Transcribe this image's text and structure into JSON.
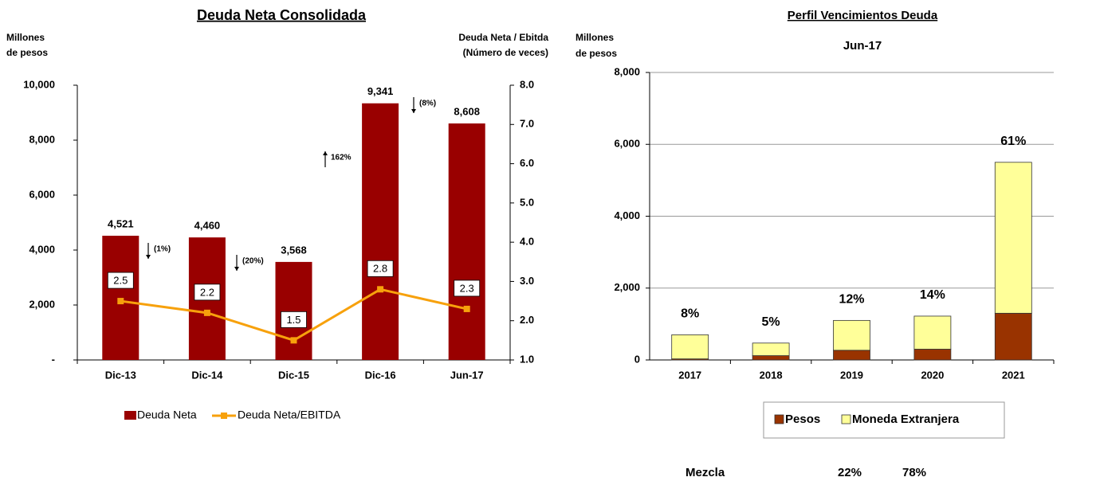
{
  "chart_data": [
    {
      "type": "bar_line",
      "title": "Deuda Neta Consolidada",
      "y_label": [
        "Millones",
        "de pesos"
      ],
      "y2_label": [
        "Deuda Neta / Ebitda",
        "(Número de veces)"
      ],
      "categories": [
        "Dic-13",
        "Dic-14",
        "Dic-15",
        "Dic-16",
        "Jun-17"
      ],
      "series": [
        {
          "name": "Deuda Neta",
          "color": "#990000",
          "values": [
            4521,
            4460,
            3568,
            9341,
            8608
          ],
          "value_labels": [
            "4,521",
            "4,460",
            "3,568",
            "9,341",
            "8,608"
          ]
        },
        {
          "name": "Deuda Neta/EBITDA",
          "color": "#f7a10c",
          "axis": "y2",
          "values": [
            2.5,
            2.2,
            1.5,
            2.8,
            2.3
          ]
        }
      ],
      "ylim": [
        0,
        10000
      ],
      "yticks": [
        {
          "value": 0,
          "label": "-"
        },
        {
          "value": 2000,
          "label": "2,000"
        },
        {
          "value": 4000,
          "label": "4,000"
        },
        {
          "value": 6000,
          "label": "6,000"
        },
        {
          "value": 8000,
          "label": "8,000"
        },
        {
          "value": 10000,
          "label": "10,000"
        }
      ],
      "y2lim": [
        1,
        8
      ],
      "y2ticks": [
        {
          "value": 1,
          "label": "1.0"
        },
        {
          "value": 2,
          "label": "2.0"
        },
        {
          "value": 3,
          "label": "3.0"
        },
        {
          "value": 4,
          "label": "4.0"
        },
        {
          "value": 5,
          "label": "5.0"
        },
        {
          "value": 6,
          "label": "6.0"
        },
        {
          "value": 7,
          "label": "7.0"
        },
        {
          "value": 8,
          "label": "8.0"
        }
      ],
      "annotations": [
        "(1%)",
        "(20%)",
        "162%",
        "(8%)"
      ],
      "grid": false
    },
    {
      "type": "stacked_bar",
      "title": "Perfil Vencimientos Deuda",
      "subtitle": "Jun-17",
      "y_label": [
        "Millones",
        "de pesos"
      ],
      "categories": [
        "2017",
        "2018",
        "2019",
        "2020",
        "2021"
      ],
      "series": [
        {
          "name": "Pesos",
          "color": "#993300",
          "values": [
            30,
            120,
            270,
            300,
            1300
          ]
        },
        {
          "name": "Moneda Extranjera",
          "color": "#ffff99",
          "values": [
            670,
            350,
            830,
            920,
            4200
          ]
        }
      ],
      "ylim": [
        0,
        8000
      ],
      "yticks": [
        0,
        {
          "value": 2000,
          "label": "2,000"
        },
        {
          "value": 4000,
          "label": "4,000"
        },
        {
          "value": 6000,
          "label": "6,000"
        },
        {
          "value": 8000,
          "label": "8,000"
        }
      ],
      "annotations": [
        "8%",
        "5%",
        "12%",
        "14%",
        "61%"
      ],
      "grid": true
    }
  ],
  "mezcla": {
    "label": "Mezcla",
    "values": [
      "22%",
      "78%"
    ]
  }
}
